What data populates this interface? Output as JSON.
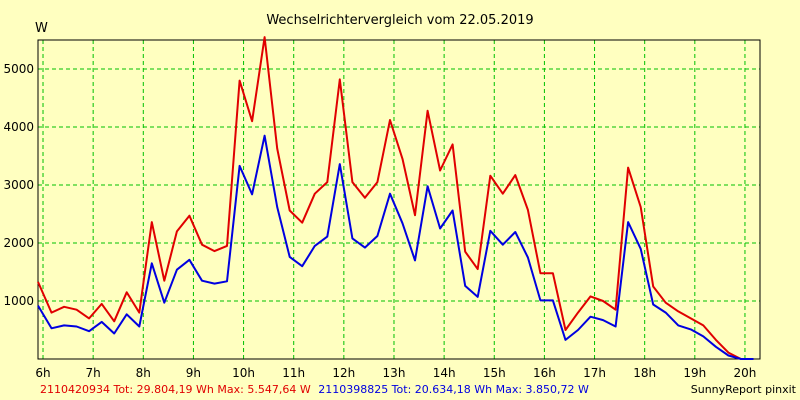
{
  "chart_data": {
    "type": "line",
    "title": "Wechselrichtervergleich vom 22.05.2019",
    "ylabel": "W",
    "xlabel": "",
    "x_ticks": [
      "6h",
      "7h",
      "8h",
      "9h",
      "10h",
      "11h",
      "12h",
      "13h",
      "14h",
      "15h",
      "16h",
      "17h",
      "18h",
      "19h",
      "20h"
    ],
    "y_ticks": [
      "1000",
      "2000",
      "3000",
      "4000",
      "5000"
    ],
    "xlim": [
      5.9,
      20.3
    ],
    "ylim": [
      0,
      5500
    ],
    "grid": true,
    "x": [
      5.9,
      6.17,
      6.42,
      6.67,
      6.92,
      7.17,
      7.42,
      7.67,
      7.92,
      8.17,
      8.42,
      8.67,
      8.92,
      9.17,
      9.42,
      9.67,
      9.92,
      10.17,
      10.42,
      10.67,
      10.92,
      11.17,
      11.42,
      11.67,
      11.92,
      12.17,
      12.42,
      12.67,
      12.92,
      13.17,
      13.42,
      13.67,
      13.92,
      14.17,
      14.42,
      14.67,
      14.92,
      15.17,
      15.42,
      15.67,
      15.92,
      16.17,
      16.42,
      16.67,
      16.92,
      17.17,
      17.42,
      17.67,
      17.92,
      18.17,
      18.42,
      18.67,
      18.92,
      19.17,
      19.42,
      19.67,
      19.92,
      20.17
    ],
    "series": [
      {
        "name": "2110420934",
        "color": "#e00000",
        "values": [
          1330,
          800,
          900,
          850,
          700,
          950,
          650,
          1150,
          800,
          2360,
          1350,
          2200,
          2470,
          1970,
          1860,
          1950,
          4800,
          4100,
          5550,
          3630,
          2560,
          2350,
          2850,
          3050,
          4820,
          3050,
          2780,
          3050,
          4120,
          3450,
          2480,
          4280,
          3250,
          3700,
          1850,
          1550,
          3160,
          2850,
          3170,
          2570,
          1480,
          1480,
          500,
          800,
          1080,
          1000,
          850,
          3300,
          2620,
          1250,
          970,
          820,
          700,
          580,
          330,
          110,
          0,
          0
        ]
      },
      {
        "name": "2110398825",
        "color": "#0000e0",
        "values": [
          920,
          530,
          580,
          560,
          480,
          640,
          440,
          770,
          560,
          1650,
          970,
          1540,
          1710,
          1350,
          1300,
          1340,
          3330,
          2840,
          3850,
          2620,
          1760,
          1600,
          1950,
          2110,
          3360,
          2080,
          1920,
          2120,
          2850,
          2340,
          1700,
          2980,
          2250,
          2560,
          1260,
          1070,
          2210,
          1970,
          2190,
          1750,
          1010,
          1010,
          330,
          500,
          730,
          670,
          560,
          2360,
          1900,
          940,
          800,
          580,
          510,
          390,
          210,
          60,
          0,
          0
        ]
      }
    ]
  },
  "summary": {
    "s1": "2110420934 Tot: 29.804,19 Wh Max: 5.547,64 W",
    "s2": "2110398825 Tot: 20.634,18 Wh Max: 3.850,72 W",
    "s1_color": "#e00000",
    "s2_color": "#0000e0"
  },
  "credit": "SunnyReport pinxit"
}
